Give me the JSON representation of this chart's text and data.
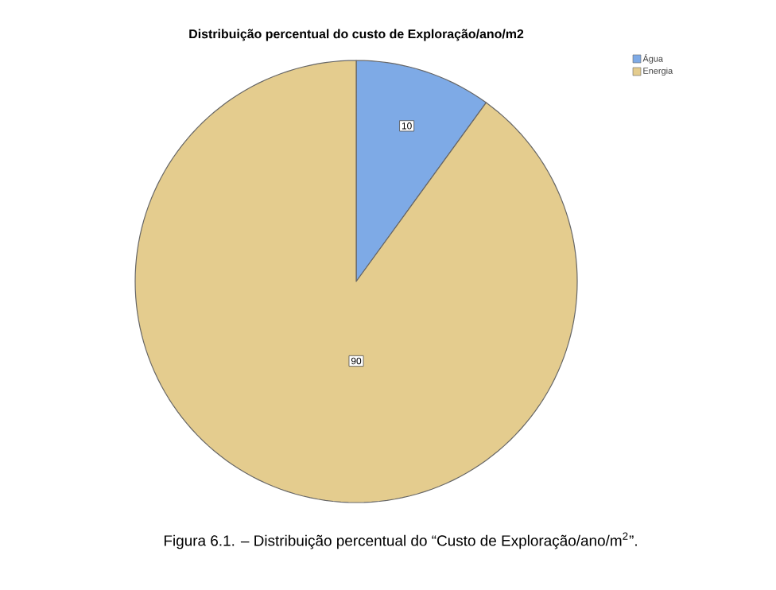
{
  "chart_data": {
    "type": "pie",
    "title": "Distribuição percentual do custo de Exploração/ano/m2",
    "categories": [
      "Água",
      "Energia"
    ],
    "values": [
      10,
      90
    ],
    "colors": [
      "#7eaae6",
      "#e4cc8e"
    ],
    "data_labels": true,
    "legend": "top right",
    "annotations": [
      "Figura 6.1. – Distribuição percentual do “Custo de Exploração/ano/m$^{2}$”."
    ]
  }
}
